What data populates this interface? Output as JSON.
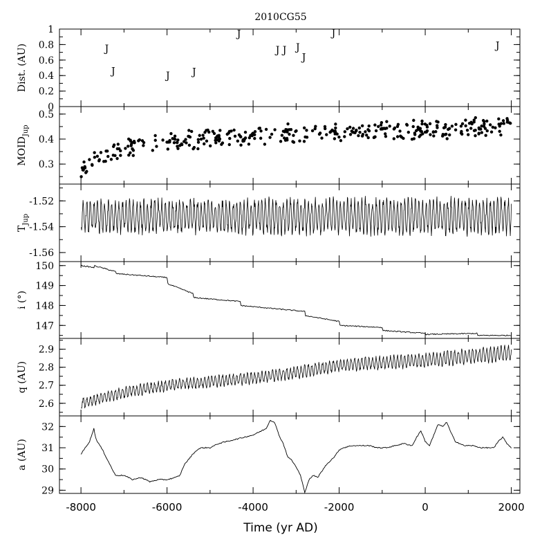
{
  "figure": {
    "title": "2010CG55",
    "xlabel": "Time (yr AD)"
  },
  "chart_data": [
    {
      "id": "dist",
      "type": "scatter",
      "ylabel": "Dist. (AU)",
      "ylim": [
        0,
        1
      ],
      "yticks": [
        0,
        0.2,
        0.4,
        0.6,
        0.8,
        1
      ],
      "ytick_labels": [
        "0",
        "0.2",
        "0.4",
        "0.6",
        "0.8",
        "1"
      ],
      "marker": "J",
      "points": [
        {
          "x": -7400,
          "y": 0.75,
          "label": "J"
        },
        {
          "x": -7250,
          "y": 0.46,
          "label": "J"
        },
        {
          "x": -5980,
          "y": 0.4,
          "label": "J"
        },
        {
          "x": -5370,
          "y": 0.45,
          "label": "J"
        },
        {
          "x": -4330,
          "y": 0.94,
          "label": "J"
        },
        {
          "x": -3430,
          "y": 0.73,
          "label": "J"
        },
        {
          "x": -3270,
          "y": 0.73,
          "label": "J"
        },
        {
          "x": -2960,
          "y": 0.77,
          "label": "J"
        },
        {
          "x": -2820,
          "y": 0.64,
          "label": "J"
        },
        {
          "x": -2130,
          "y": 0.95,
          "label": "J"
        },
        {
          "x": 1680,
          "y": 0.79,
          "label": "J"
        }
      ]
    },
    {
      "id": "moid",
      "type": "scatter",
      "ylabel": "MOID",
      "ylabel_subscript": "Jup",
      "ylim": [
        0.22,
        0.53
      ],
      "yticks": [
        0.3,
        0.4,
        0.5
      ],
      "ytick_labels": [
        "0.3",
        "0.4",
        "0.5"
      ],
      "trend": {
        "x": [
          -8000,
          -7000,
          -6000,
          -4000,
          -2000,
          0,
          2000
        ],
        "y": [
          0.29,
          0.37,
          0.39,
          0.415,
          0.425,
          0.44,
          0.45
        ]
      },
      "spread": 0.033,
      "n_points": 360
    },
    {
      "id": "tjup",
      "type": "line",
      "ylabel": "T",
      "ylabel_subscript": "Jup",
      "ylim": [
        -1.567,
        -1.507
      ],
      "yticks": [
        -1.52,
        -1.54,
        -1.56
      ],
      "ytick_labels": [
        "-1.52",
        "-1.54",
        "-1.56"
      ],
      "mean": -1.532,
      "amplitude": {
        "x": [
          -8000,
          -6000,
          -2000,
          2000
        ],
        "y": [
          0.011,
          0.011,
          0.012,
          0.012
        ]
      },
      "period_years": 83
    },
    {
      "id": "incl",
      "type": "line",
      "ylabel": "i (°)",
      "ylim": [
        146.35,
        150.2
      ],
      "yticks": [
        147,
        148,
        149,
        150
      ],
      "ytick_labels": [
        "147",
        "148",
        "149",
        "150"
      ],
      "x": [
        -8000,
        -7700,
        -7700,
        -7200,
        -7200,
        -6000,
        -6000,
        -5400,
        -5400,
        -4300,
        -4300,
        -2800,
        -2800,
        -2000,
        -2000,
        -1000,
        -1000,
        0,
        0,
        1200,
        1200,
        2000
      ],
      "y": [
        150.0,
        149.9,
        150.0,
        149.7,
        149.6,
        149.4,
        149.1,
        148.6,
        148.4,
        148.2,
        148.0,
        147.7,
        147.5,
        147.2,
        147.0,
        146.9,
        146.75,
        146.6,
        146.55,
        146.6,
        146.5,
        146.5
      ]
    },
    {
      "id": "q",
      "type": "line",
      "ylabel": "q (AU)",
      "ylim": [
        2.53,
        2.96
      ],
      "yticks": [
        2.6,
        2.7,
        2.8,
        2.9
      ],
      "ytick_labels": [
        "2.6",
        "2.7",
        "2.8",
        "2.9"
      ],
      "trend": {
        "x": [
          -8000,
          -7000,
          -6000,
          -4000,
          -3000,
          -2000,
          0,
          2000
        ],
        "y": [
          2.6,
          2.66,
          2.7,
          2.74,
          2.77,
          2.81,
          2.84,
          2.88
        ]
      },
      "amplitude": {
        "x": [
          -8000,
          -2000,
          2000
        ],
        "y": [
          0.025,
          0.03,
          0.04
        ]
      },
      "period_years": 83
    },
    {
      "id": "a",
      "type": "line",
      "ylabel": "a (AU)",
      "ylim": [
        28.85,
        32.5
      ],
      "yticks": [
        29,
        30,
        31,
        32
      ],
      "ytick_labels": [
        "29",
        "30",
        "31",
        "32"
      ],
      "x": [
        -8000,
        -7900,
        -7800,
        -7700,
        -7650,
        -7500,
        -7400,
        -7300,
        -7200,
        -7000,
        -6800,
        -6600,
        -6400,
        -6200,
        -6000,
        -5800,
        -5700,
        -5600,
        -5400,
        -5300,
        -5200,
        -5000,
        -4800,
        -4600,
        -4400,
        -4200,
        -4000,
        -3800,
        -3700,
        -3600,
        -3500,
        -3400,
        -3300,
        -3200,
        -3100,
        -3000,
        -2900,
        -2800,
        -2700,
        -2600,
        -2500,
        -2400,
        -2300,
        -2200,
        -2100,
        -2000,
        -1900,
        -1700,
        -1500,
        -1300,
        -1100,
        -900,
        -700,
        -500,
        -300,
        -200,
        -100,
        0,
        100,
        200,
        300,
        400,
        500,
        600,
        700,
        800,
        900,
        1100,
        1300,
        1500,
        1600,
        1700,
        1800,
        1900,
        2000
      ],
      "y": [
        30.7,
        31.0,
        31.3,
        31.9,
        31.4,
        30.9,
        30.5,
        30.1,
        29.7,
        29.7,
        29.5,
        29.6,
        29.4,
        29.5,
        29.5,
        29.6,
        29.7,
        30.2,
        30.7,
        30.9,
        31.0,
        31.0,
        31.2,
        31.3,
        31.4,
        31.5,
        31.6,
        31.8,
        31.9,
        32.3,
        32.2,
        31.6,
        31.2,
        30.6,
        30.4,
        30.1,
        29.7,
        28.9,
        29.5,
        29.7,
        29.6,
        29.9,
        30.2,
        30.4,
        30.6,
        30.9,
        31.0,
        31.1,
        31.1,
        31.1,
        31.0,
        31.0,
        31.1,
        31.2,
        31.1,
        31.5,
        31.8,
        31.3,
        31.1,
        31.6,
        32.1,
        32.0,
        32.2,
        31.7,
        31.3,
        31.2,
        31.1,
        31.1,
        31.0,
        31.0,
        31.0,
        31.3,
        31.5,
        31.2,
        31.0
      ]
    }
  ],
  "x_axis": {
    "xlim": [
      -8500,
      2200
    ],
    "ticks": [
      -8000,
      -6000,
      -4000,
      -2000,
      0,
      2000
    ],
    "tick_labels": [
      "-8000",
      "-6000",
      "-4000",
      "-2000",
      "0",
      "2000"
    ]
  }
}
